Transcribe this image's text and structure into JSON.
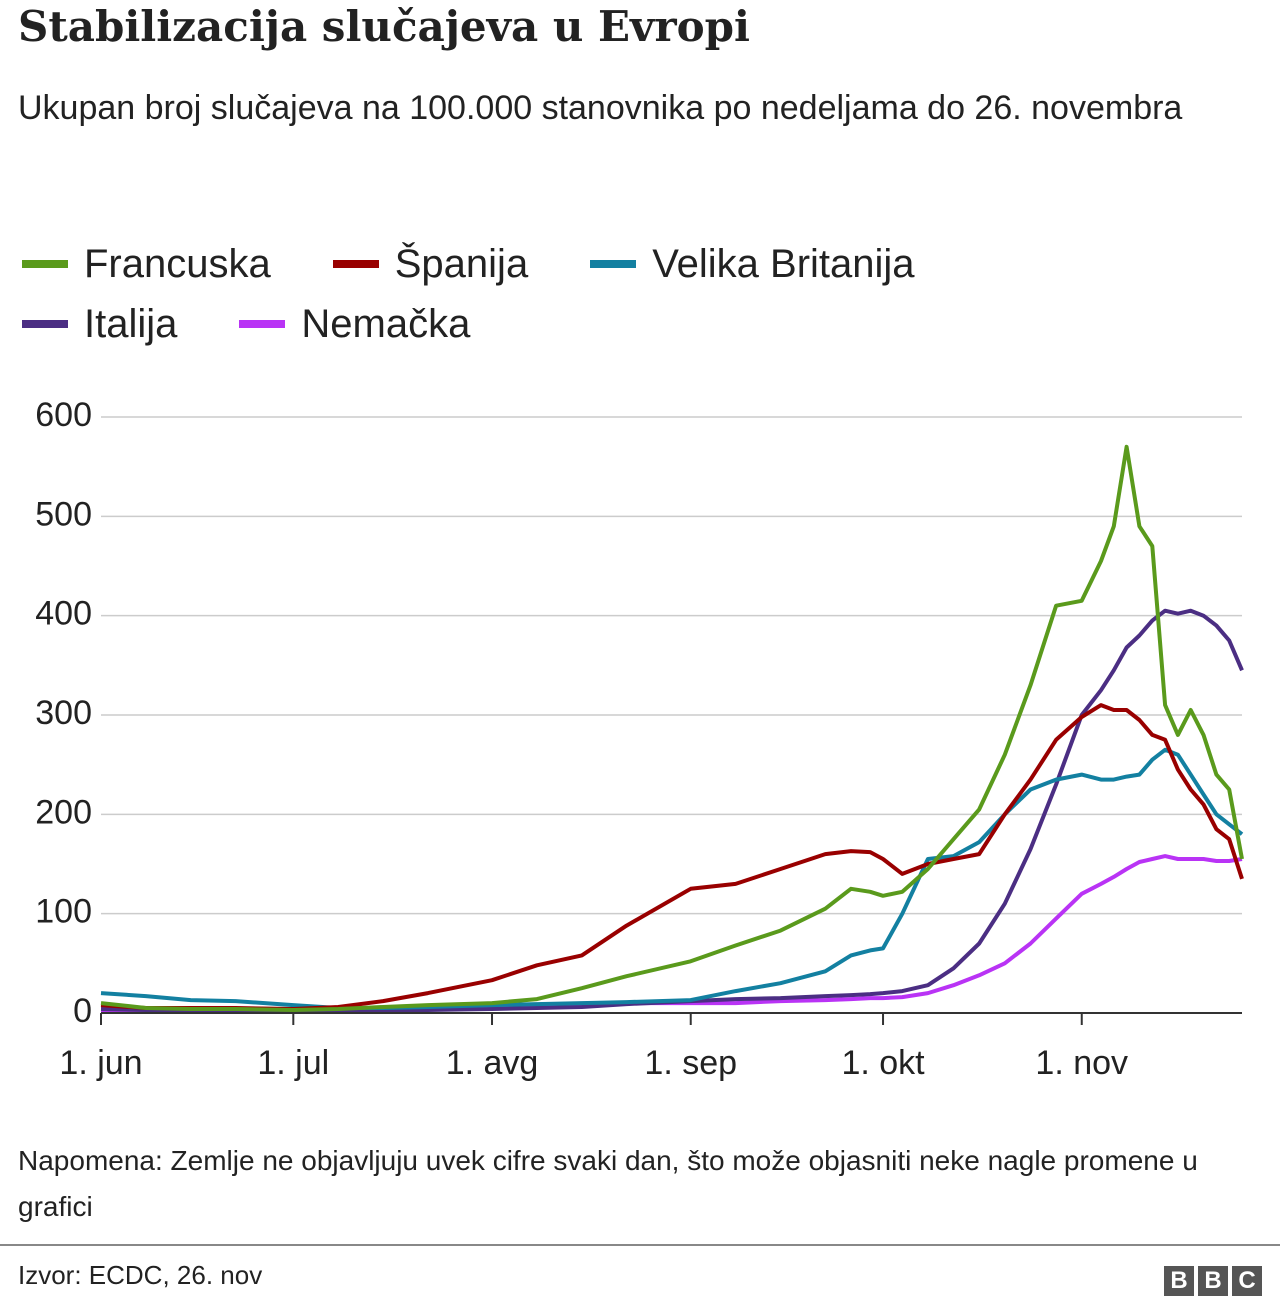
{
  "chart_data": {
    "type": "line",
    "title": "Stabilizacija slučajeva u Evropi",
    "subtitle": "Ukupan broj slučajeva na 100.000 stanovnika po nedeljama do 26. novembra",
    "note": "Napomena: Zemlje ne objavljuju uvek cifre svaki dan, što može objasniti neke nagle promene u grafici",
    "source": "Izvor: ECDC, 26. nov",
    "x": [
      "06-01",
      "06-08",
      "06-15",
      "06-22",
      "07-01",
      "07-08",
      "07-15",
      "07-22",
      "08-01",
      "08-08",
      "08-15",
      "08-22",
      "09-01",
      "09-08",
      "09-15",
      "09-22",
      "09-26",
      "09-29",
      "10-01",
      "10-04",
      "10-08",
      "10-12",
      "10-16",
      "10-20",
      "10-24",
      "10-28",
      "11-01",
      "11-04",
      "11-06",
      "11-08",
      "11-10",
      "11-12",
      "11-14",
      "11-16",
      "11-18",
      "11-20",
      "11-22",
      "11-24",
      "11-26"
    ],
    "xlim": [
      "06-01",
      "11-26"
    ],
    "xticks": [
      {
        "value": "06-01",
        "label": "1. jun"
      },
      {
        "value": "07-01",
        "label": "1. jul"
      },
      {
        "value": "08-01",
        "label": "1. avg"
      },
      {
        "value": "09-01",
        "label": "1. sep"
      },
      {
        "value": "10-01",
        "label": "1. okt"
      },
      {
        "value": "11-01",
        "label": "1. nov"
      }
    ],
    "ylim": [
      0,
      600
    ],
    "yticks": [
      0,
      100,
      200,
      300,
      400,
      500,
      600
    ],
    "grid": true,
    "series": [
      {
        "name": "Francuska",
        "color": "#5a9a1c",
        "values": [
          10,
          5,
          4,
          4,
          3,
          4,
          6,
          8,
          10,
          14,
          25,
          37,
          52,
          68,
          83,
          105,
          125,
          122,
          118,
          122,
          145,
          175,
          205,
          260,
          330,
          410,
          415,
          455,
          490,
          570,
          490,
          470,
          310,
          280,
          305,
          280,
          240,
          225,
          155
        ]
      },
      {
        "name": "Španija",
        "color": "#990000",
        "values": [
          8,
          5,
          5,
          5,
          4,
          6,
          12,
          20,
          33,
          48,
          58,
          88,
          125,
          130,
          145,
          160,
          163,
          162,
          155,
          140,
          150,
          155,
          160,
          200,
          235,
          275,
          298,
          310,
          305,
          305,
          295,
          280,
          275,
          245,
          225,
          210,
          185,
          175,
          135
        ]
      },
      {
        "name": "Velika Britanija",
        "color": "#1380a1",
        "values": [
          20,
          17,
          13,
          12,
          8,
          5,
          5,
          6,
          8,
          9,
          10,
          11,
          13,
          22,
          30,
          42,
          58,
          63,
          65,
          100,
          155,
          158,
          172,
          200,
          225,
          235,
          240,
          235,
          235,
          238,
          240,
          255,
          265,
          260,
          240,
          220,
          200,
          190,
          180
        ]
      },
      {
        "name": "Italija",
        "color": "#4b2e83",
        "values": [
          4,
          3,
          3,
          3,
          3,
          3,
          3,
          3,
          4,
          5,
          6,
          9,
          12,
          14,
          15,
          17,
          18,
          19,
          20,
          22,
          28,
          45,
          70,
          110,
          165,
          230,
          300,
          325,
          345,
          368,
          380,
          395,
          405,
          402,
          405,
          400,
          390,
          375,
          345
        ]
      },
      {
        "name": "Nemačka",
        "color": "#b933f5",
        "values": [
          3,
          3,
          3,
          3,
          3,
          3,
          3,
          4,
          5,
          7,
          9,
          10,
          10,
          10,
          12,
          13,
          14,
          15,
          15,
          16,
          20,
          28,
          38,
          50,
          70,
          95,
          120,
          130,
          137,
          145,
          152,
          155,
          158,
          155,
          155,
          155,
          153,
          153,
          155
        ]
      }
    ]
  }
}
